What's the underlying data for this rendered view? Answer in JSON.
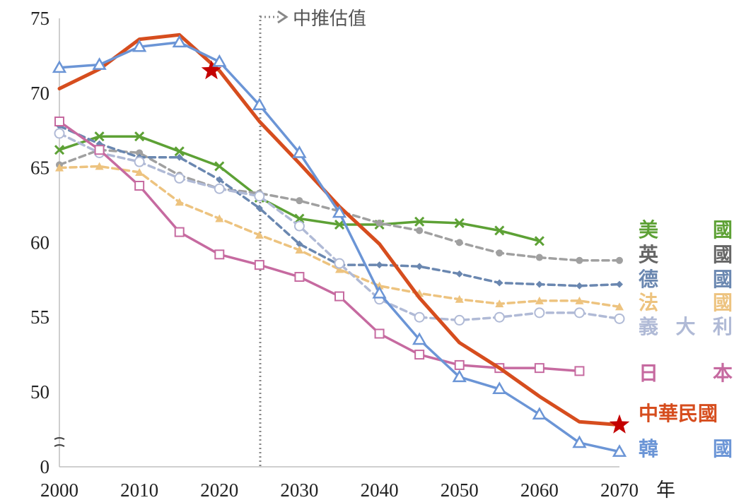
{
  "chart_data": {
    "type": "line",
    "title": "",
    "xlabel": "",
    "ylabel": "",
    "x_unit": "年",
    "xlim": [
      2000,
      2070
    ],
    "ylim": [
      45,
      75
    ],
    "y_axis_break": true,
    "x_ticks": [
      "2000",
      "2010",
      "2020",
      "2030",
      "2040",
      "2050",
      "2060",
      "2070"
    ],
    "y_ticks": [
      "0",
      "50",
      "55",
      "60",
      "65",
      "70",
      "75"
    ],
    "projection_start": 2025,
    "projection_label": "中推估值",
    "series": [
      {
        "name": "美國",
        "color": "#5da135",
        "style": "solid",
        "marker": "x",
        "x": [
          2000,
          2005,
          2010,
          2015,
          2020,
          2025,
          2030,
          2035,
          2040,
          2045,
          2050,
          2055,
          2060
        ],
        "y": [
          66.2,
          67.1,
          67.1,
          66.1,
          65.1,
          63.0,
          61.6,
          61.2,
          61.2,
          61.4,
          61.3,
          60.8,
          60.1
        ]
      },
      {
        "name": "英國",
        "color": "#a0a0a0",
        "style": "dashed",
        "marker": "dot",
        "x": [
          2000,
          2005,
          2010,
          2015,
          2020,
          2025,
          2030,
          2035,
          2040,
          2045,
          2050,
          2055,
          2060,
          2065,
          2070
        ],
        "y": [
          65.2,
          66.2,
          66.0,
          64.5,
          63.6,
          63.3,
          62.8,
          62.1,
          61.3,
          60.8,
          60.0,
          59.3,
          59.0,
          58.8,
          58.8
        ]
      },
      {
        "name": "德國",
        "color": "#6a87b0",
        "style": "dashed",
        "marker": "diamond",
        "x": [
          2000,
          2005,
          2010,
          2015,
          2020,
          2025,
          2030,
          2035,
          2040,
          2045,
          2050,
          2055,
          2060,
          2065,
          2070
        ],
        "y": [
          67.8,
          66.6,
          65.7,
          65.7,
          64.2,
          62.3,
          59.9,
          58.5,
          58.5,
          58.4,
          57.9,
          57.3,
          57.2,
          57.1,
          57.2
        ]
      },
      {
        "name": "法國",
        "color": "#edc37f",
        "style": "dashed",
        "marker": "triangle-filled",
        "x": [
          2000,
          2005,
          2010,
          2015,
          2020,
          2025,
          2030,
          2035,
          2040,
          2045,
          2050,
          2055,
          2060,
          2065,
          2070
        ],
        "y": [
          65.0,
          65.1,
          64.7,
          62.7,
          61.6,
          60.5,
          59.5,
          58.2,
          57.1,
          56.6,
          56.2,
          55.9,
          56.1,
          56.1,
          55.7
        ]
      },
      {
        "name": "義大利",
        "color": "#b0bad6",
        "style": "dashed",
        "marker": "circle-open",
        "x": [
          2000,
          2005,
          2010,
          2015,
          2020,
          2025,
          2030,
          2035,
          2040,
          2045,
          2050,
          2055,
          2060,
          2065,
          2070
        ],
        "y": [
          67.3,
          66.0,
          65.4,
          64.3,
          63.6,
          63.1,
          61.1,
          58.6,
          56.2,
          55.0,
          54.8,
          55.0,
          55.3,
          55.3,
          54.9
        ]
      },
      {
        "name": "日本",
        "color": "#c66aa0",
        "style": "solid",
        "marker": "square-open",
        "x": [
          2000,
          2005,
          2010,
          2015,
          2020,
          2025,
          2030,
          2035,
          2040,
          2045,
          2050,
          2055,
          2060,
          2065
        ],
        "y": [
          68.1,
          66.2,
          63.8,
          60.7,
          59.2,
          58.5,
          57.7,
          56.4,
          53.9,
          52.5,
          51.8,
          51.6,
          51.6,
          51.4
        ]
      },
      {
        "name": "中華民國",
        "color": "#d64d1e",
        "style": "solid",
        "marker": "none",
        "width": 5,
        "x": [
          2000,
          2005,
          2010,
          2015,
          2020,
          2025,
          2030,
          2035,
          2040,
          2045,
          2050,
          2055,
          2060,
          2065,
          2070
        ],
        "y": [
          70.3,
          71.6,
          73.6,
          73.9,
          71.5,
          68.1,
          65.3,
          62.4,
          59.9,
          56.3,
          53.3,
          51.6,
          49.7,
          48.0,
          47.8
        ],
        "star_points": [
          [
            2019,
            71.5
          ],
          [
            2070,
            47.8
          ]
        ]
      },
      {
        "name": "韓國",
        "color": "#6b95d6",
        "style": "solid",
        "marker": "triangle-open",
        "x": [
          2000,
          2005,
          2010,
          2015,
          2020,
          2025,
          2030,
          2035,
          2040,
          2045,
          2050,
          2055,
          2060,
          2065,
          2070
        ],
        "y": [
          71.7,
          71.9,
          73.1,
          73.4,
          72.1,
          69.2,
          66.0,
          62.0,
          56.6,
          53.5,
          51.0,
          50.2,
          48.5,
          46.6,
          46.0
        ]
      }
    ],
    "legend": [
      {
        "chars": [
          "美",
          "國"
        ],
        "color": "#5da135"
      },
      {
        "chars": [
          "英",
          "國"
        ],
        "color": "#666666"
      },
      {
        "chars": [
          "德",
          "國"
        ],
        "color": "#6a87b0"
      },
      {
        "chars": [
          "法",
          "國"
        ],
        "color": "#edc37f"
      },
      {
        "chars": [
          "義",
          "大",
          "利"
        ],
        "color": "#b0bad6"
      },
      {
        "chars": [
          "日",
          "本"
        ],
        "color": "#c66aa0"
      },
      {
        "chars": [
          "中華民國"
        ],
        "color": "#d64d1e"
      },
      {
        "chars": [
          "韓",
          "國"
        ],
        "color": "#6b95d6"
      }
    ]
  }
}
